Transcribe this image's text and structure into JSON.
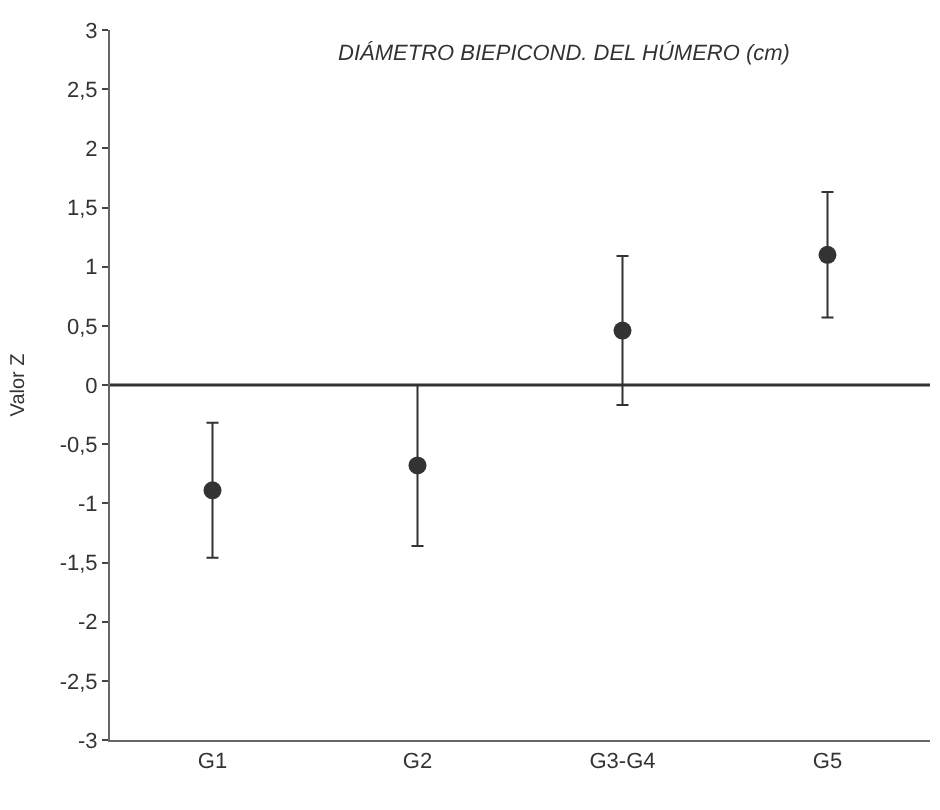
{
  "chart_data": {
    "type": "scatter",
    "title": "DIÁMETRO BIEPICOND. DEL HÚMERO (cm)",
    "ylabel": "Valor Z",
    "categories": [
      "G1",
      "G2",
      "G3-G4",
      "G5"
    ],
    "series": [
      {
        "color": "#333333",
        "values": [
          -0.89,
          -0.68,
          0.46,
          1.1
        ],
        "errors": [
          0.57,
          0.68,
          0.63,
          0.53
        ]
      }
    ],
    "ylim": [
      -3,
      3
    ],
    "yticks": [
      {
        "value": -3,
        "label": "-3"
      },
      {
        "value": -2.5,
        "label": "-2,5"
      },
      {
        "value": -2,
        "label": "-2"
      },
      {
        "value": -1.5,
        "label": "-1,5"
      },
      {
        "value": -1,
        "label": "-1"
      },
      {
        "value": -0.5,
        "label": "-0,5"
      },
      {
        "value": 0,
        "label": "0"
      },
      {
        "value": 0.5,
        "label": "0,5"
      },
      {
        "value": 1,
        "label": "1"
      },
      {
        "value": 1.5,
        "label": "1,5"
      },
      {
        "value": 2,
        "label": "2"
      },
      {
        "value": 2.5,
        "label": "2,5"
      },
      {
        "value": 3,
        "label": "3"
      }
    ],
    "ref_lines": [
      {
        "axis": "y",
        "value": 0,
        "color": "#333333"
      }
    ],
    "marker": "circle"
  }
}
